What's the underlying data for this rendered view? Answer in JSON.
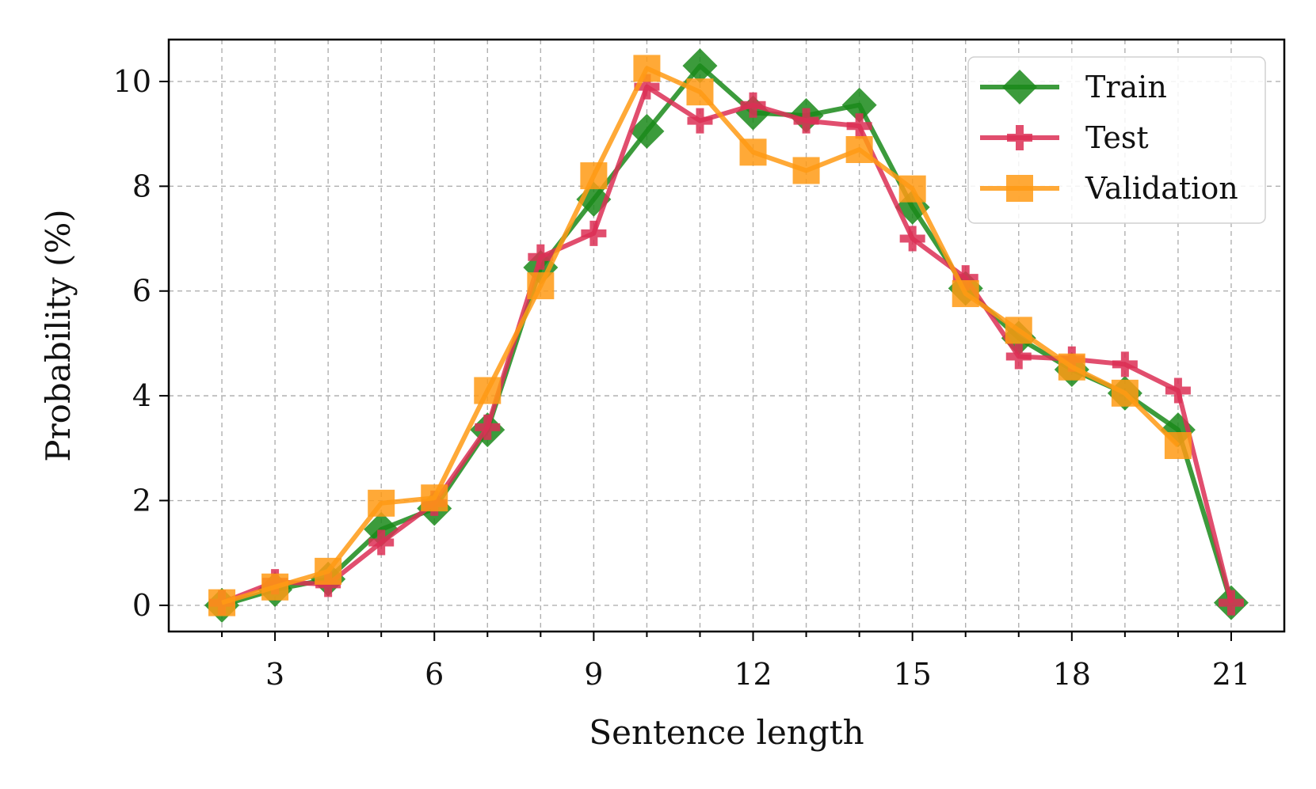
{
  "chart_data": {
    "type": "line",
    "xlabel": "Sentence length",
    "ylabel": "Probability (%)",
    "xlim": [
      1,
      22
    ],
    "ylim": [
      -0.5,
      10.8
    ],
    "x_ticks": [
      3,
      6,
      9,
      12,
      15,
      18,
      21
    ],
    "y_ticks": [
      0,
      2,
      4,
      6,
      8,
      10
    ],
    "grid": true,
    "legend_position": "top-right",
    "series": [
      {
        "name": "Train",
        "color": "#1a8a1a",
        "marker": "diamond",
        "x": [
          2,
          3,
          4,
          5,
          6,
          7,
          8,
          9,
          10,
          11,
          12,
          13,
          14,
          15,
          16,
          17,
          18,
          19,
          20,
          21
        ],
        "values": [
          0.0,
          0.3,
          0.5,
          1.45,
          1.85,
          3.35,
          6.45,
          7.75,
          9.05,
          10.3,
          9.4,
          9.35,
          9.55,
          7.6,
          6.05,
          5.1,
          4.5,
          4.05,
          3.35,
          0.05
        ]
      },
      {
        "name": "Test",
        "color": "#dc2f55",
        "marker": "plus",
        "x": [
          2,
          3,
          4,
          5,
          6,
          7,
          8,
          9,
          10,
          11,
          12,
          13,
          14,
          15,
          16,
          17,
          18,
          19,
          20,
          21
        ],
        "values": [
          0.05,
          0.45,
          0.4,
          1.2,
          1.95,
          3.4,
          6.65,
          7.1,
          9.9,
          9.25,
          9.55,
          9.25,
          9.15,
          7.0,
          6.25,
          4.75,
          4.7,
          4.6,
          4.1,
          0.05
        ]
      },
      {
        "name": "Validation",
        "color": "#ff9a14",
        "marker": "square",
        "x": [
          2,
          3,
          4,
          5,
          6,
          7,
          8,
          9,
          10,
          11,
          12,
          13,
          14,
          15,
          16,
          17,
          18,
          19,
          20
        ],
        "values": [
          0.05,
          0.35,
          0.65,
          1.95,
          2.05,
          4.1,
          6.1,
          8.2,
          10.25,
          9.8,
          8.65,
          8.3,
          8.7,
          7.95,
          5.95,
          5.25,
          4.55,
          4.05,
          3.05
        ]
      }
    ]
  }
}
